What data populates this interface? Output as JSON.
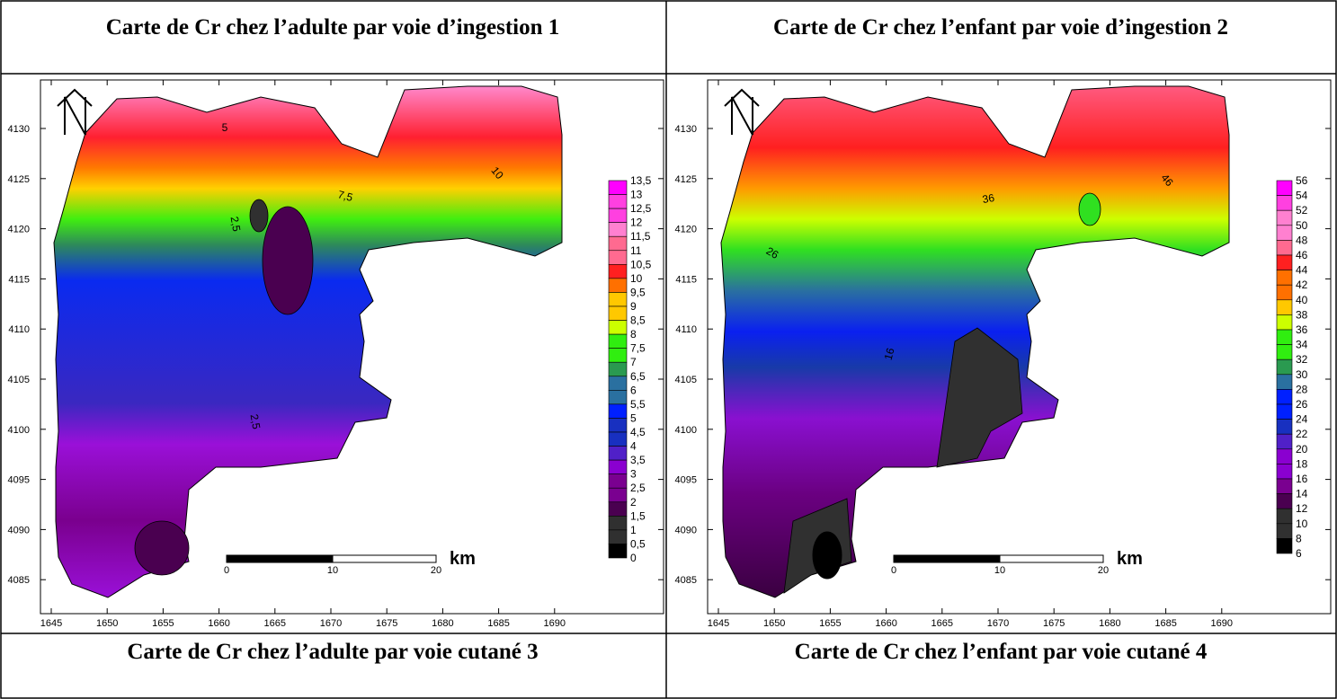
{
  "panels": [
    {
      "title": "Carte de Cr chez l’adulte par voie d’ingestion 1",
      "x_ticks": [
        "1645",
        "1650",
        "1655",
        "1660",
        "1665",
        "1670",
        "1675",
        "1680",
        "1685",
        "1690"
      ],
      "y_ticks": [
        "4130",
        "4125",
        "4120",
        "4115",
        "4110",
        "4105",
        "4100",
        "4095",
        "4090",
        "4085"
      ],
      "legend": [
        "13,5",
        "13",
        "12,5",
        "12",
        "11,5",
        "11",
        "10,5",
        "10",
        "9,5",
        "9",
        "8,5",
        "8",
        "7,5",
        "7",
        "6,5",
        "6",
        "5,5",
        "5",
        "4,5",
        "4",
        "3,5",
        "3",
        "2,5",
        "2",
        "1,5",
        "1",
        "0,5",
        "0"
      ],
      "contour_labels": [
        "5",
        "7,5",
        "10",
        "2,5",
        "2,5"
      ],
      "scale": [
        "0",
        "10",
        "20"
      ],
      "unit": "km"
    },
    {
      "title": "Carte de Cr chez l’enfant par voie d’ingestion 2",
      "x_ticks": [
        "1645",
        "1650",
        "1655",
        "1660",
        "1665",
        "1670",
        "1675",
        "1680",
        "1685",
        "1690"
      ],
      "y_ticks": [
        "4130",
        "4125",
        "4120",
        "4115",
        "4110",
        "4105",
        "4100",
        "4095",
        "4090",
        "4085"
      ],
      "legend": [
        "56",
        "54",
        "52",
        "50",
        "48",
        "46",
        "44",
        "42",
        "40",
        "38",
        "36",
        "34",
        "32",
        "30",
        "28",
        "26",
        "24",
        "22",
        "20",
        "18",
        "16",
        "14",
        "12",
        "10",
        "8",
        "6"
      ],
      "contour_labels": [
        "36",
        "46",
        "26",
        "16"
      ],
      "scale": [
        "0",
        "10",
        "20"
      ],
      "unit": "km"
    }
  ],
  "captions": [
    "Carte de Cr chez l’adulte par voie cutané 3",
    "Carte de Cr chez l’enfant par voie cutané 4"
  ]
}
